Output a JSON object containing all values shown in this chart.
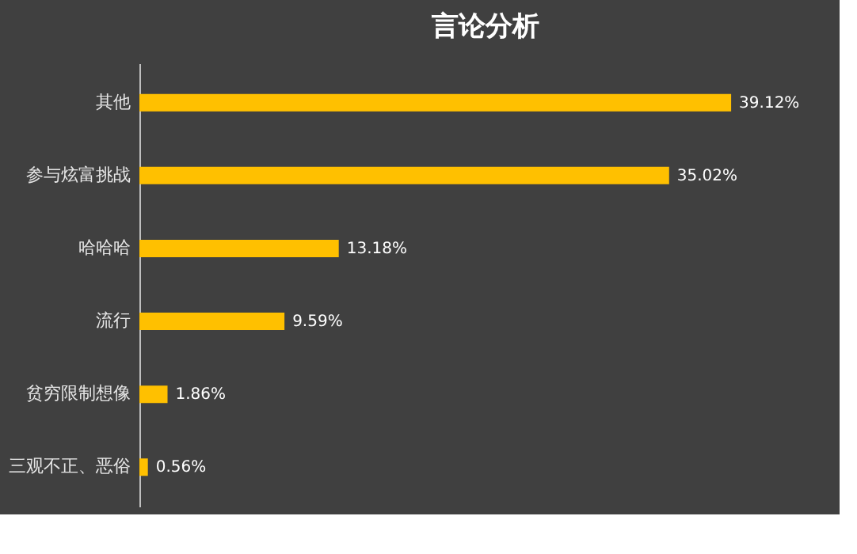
{
  "chart_data": {
    "type": "bar",
    "orientation": "horizontal",
    "title": "言论分析",
    "categories": [
      "其他",
      "参与炫富挑战",
      "哈哈哈",
      "流行",
      "贫穷限制想像",
      "三观不正、恶俗"
    ],
    "values": [
      39.12,
      35.02,
      13.18,
      9.59,
      1.86,
      0.56
    ],
    "value_labels": [
      "39.12%",
      "35.02%",
      "13.18%",
      "9.59%",
      "1.86%",
      "0.56%"
    ],
    "color": "#ffc000"
  }
}
